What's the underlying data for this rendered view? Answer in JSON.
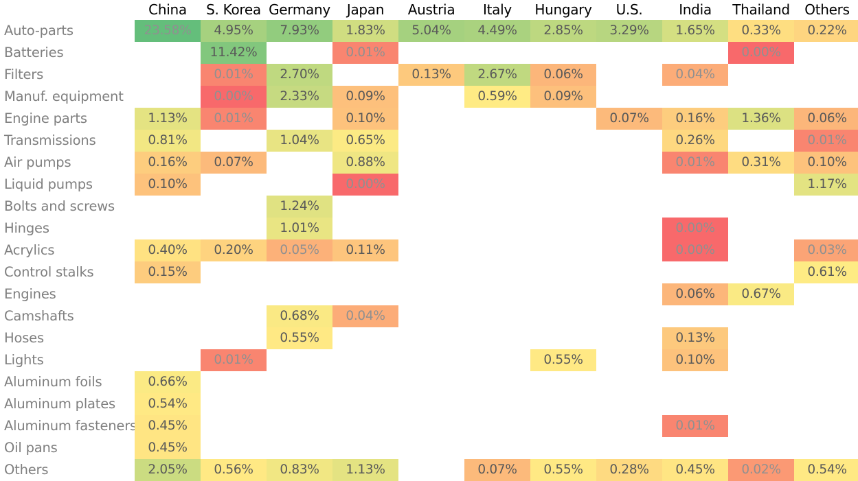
{
  "chart_data": {
    "type": "heatmap",
    "columns": [
      "China",
      "S. Korea",
      "Germany",
      "Japan",
      "Austria",
      "Italy",
      "Hungary",
      "U.S.",
      "India",
      "Thailand",
      "Others"
    ],
    "rows": [
      "Auto-parts",
      "Batteries",
      "Filters",
      "Manuf. equipment",
      "Engine parts",
      "Transmissions",
      "Air pumps",
      "Liquid pumps",
      "Bolts and screws",
      "Hinges",
      "Acrylics",
      "Control stalks",
      "Engines",
      "Camshafts",
      "Hoses",
      "Lights",
      "Aluminum foils",
      "Aluminum plates",
      "Aluminum fasteners",
      "Oil pans",
      "Others"
    ],
    "values": [
      [
        23.58,
        4.95,
        7.93,
        1.83,
        5.04,
        4.49,
        2.85,
        3.29,
        1.65,
        0.33,
        0.22
      ],
      [
        null,
        11.42,
        null,
        0.01,
        null,
        null,
        null,
        null,
        null,
        0.0,
        null
      ],
      [
        null,
        0.01,
        2.7,
        null,
        0.13,
        2.67,
        0.06,
        null,
        0.04,
        null,
        null
      ],
      [
        null,
        0.0,
        2.33,
        0.09,
        null,
        0.59,
        0.09,
        null,
        null,
        null,
        null
      ],
      [
        1.13,
        0.01,
        null,
        0.1,
        null,
        null,
        null,
        0.07,
        0.16,
        1.36,
        0.06
      ],
      [
        0.81,
        null,
        1.04,
        0.65,
        null,
        null,
        null,
        null,
        0.26,
        null,
        0.01
      ],
      [
        0.16,
        0.07,
        null,
        0.88,
        null,
        null,
        null,
        null,
        0.01,
        0.31,
        0.1
      ],
      [
        0.1,
        null,
        null,
        0.0,
        null,
        null,
        null,
        null,
        null,
        null,
        1.17
      ],
      [
        null,
        null,
        1.24,
        null,
        null,
        null,
        null,
        null,
        null,
        null,
        null
      ],
      [
        null,
        null,
        1.01,
        null,
        null,
        null,
        null,
        null,
        0.0,
        null,
        null
      ],
      [
        0.4,
        0.2,
        0.05,
        0.11,
        null,
        null,
        null,
        null,
        0.0,
        null,
        0.03
      ],
      [
        0.15,
        null,
        null,
        null,
        null,
        null,
        null,
        null,
        null,
        null,
        0.61
      ],
      [
        null,
        null,
        null,
        null,
        null,
        null,
        null,
        null,
        0.06,
        0.67,
        null
      ],
      [
        null,
        null,
        0.68,
        0.04,
        null,
        null,
        null,
        null,
        null,
        null,
        null
      ],
      [
        null,
        null,
        0.55,
        null,
        null,
        null,
        null,
        null,
        0.13,
        null,
        null
      ],
      [
        null,
        0.01,
        null,
        null,
        null,
        null,
        0.55,
        null,
        0.1,
        null,
        null
      ],
      [
        0.66,
        null,
        null,
        null,
        null,
        null,
        null,
        null,
        null,
        null,
        null
      ],
      [
        0.54,
        null,
        null,
        null,
        null,
        null,
        null,
        null,
        null,
        null,
        null
      ],
      [
        0.45,
        null,
        null,
        null,
        null,
        null,
        null,
        null,
        0.01,
        null,
        null
      ],
      [
        0.45,
        null,
        null,
        null,
        null,
        null,
        null,
        null,
        null,
        null,
        null
      ],
      [
        2.05,
        0.56,
        0.83,
        1.13,
        null,
        0.07,
        0.55,
        0.28,
        0.45,
        0.02,
        0.54
      ]
    ],
    "value_suffix": "%",
    "colors": {
      "high": "#63be7b",
      "mid": "#ffeb84",
      "low": "#f8696b",
      "text_dark": "#595959",
      "text_light": "#909090",
      "label": "#7f7f7f",
      "header": "#000000"
    }
  }
}
